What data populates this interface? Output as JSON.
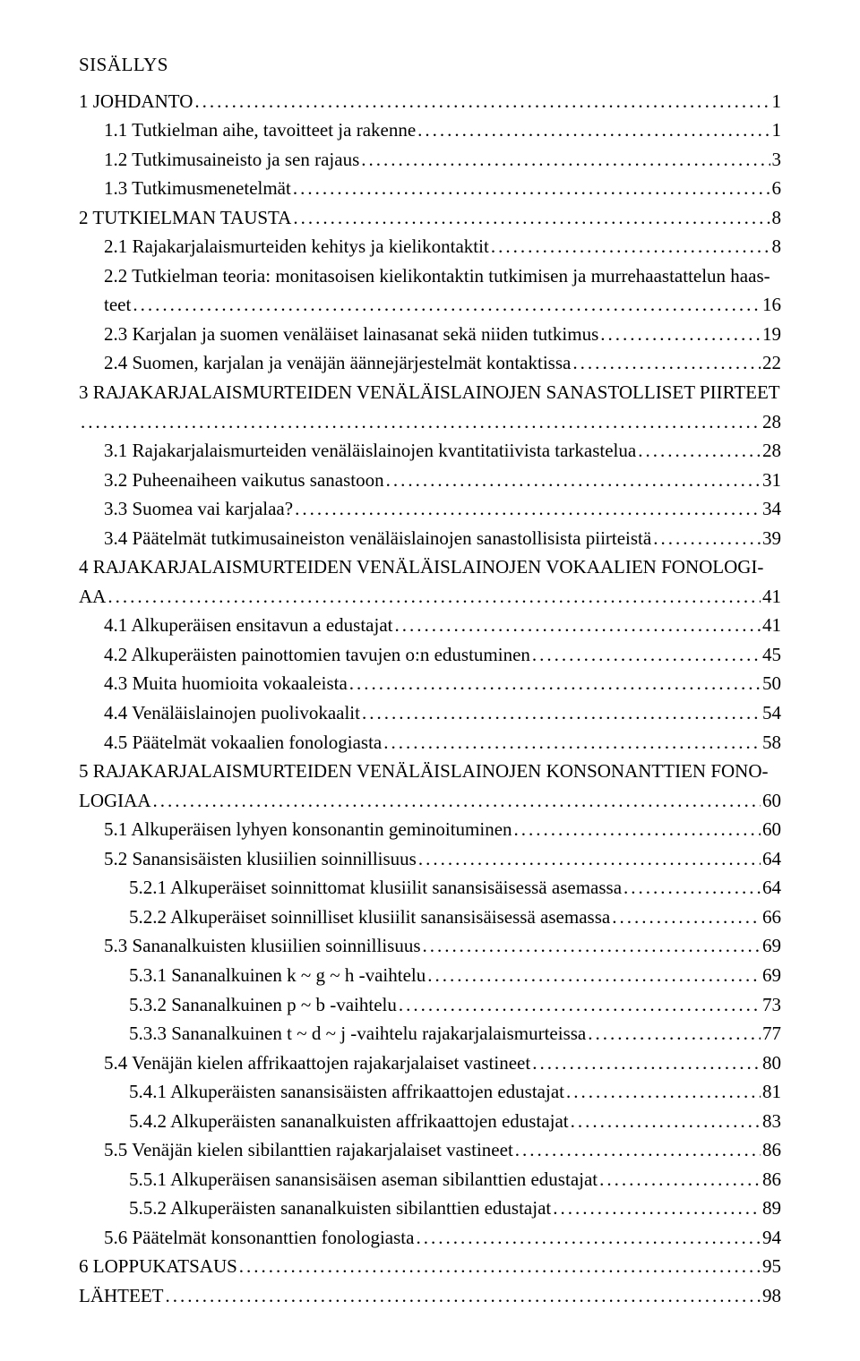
{
  "title": "SISÄLLYS",
  "entries": [
    {
      "indent": 0,
      "label": "1 JOHDANTO",
      "page": "1"
    },
    {
      "indent": 1,
      "label": "1.1 Tutkielman aihe, tavoitteet ja rakenne",
      "page": "1"
    },
    {
      "indent": 1,
      "label": "1.2 Tutkimusaineisto ja sen rajaus",
      "page": "3"
    },
    {
      "indent": 1,
      "label": "1.3 Tutkimusmenetelmät",
      "page": "6"
    },
    {
      "indent": 0,
      "label": "2 TUTKIELMAN TAUSTA",
      "page": "8"
    },
    {
      "indent": 1,
      "label": "2.1 Rajakarjalaismurteiden kehitys ja kielikontaktit",
      "page": "8"
    },
    {
      "indent": 1,
      "label": "2.2 Tutkielman teoria: monitasoisen kielikontaktin tutkimisen ja murrehaastattelun haas-",
      "page": "",
      "nowrap": true
    },
    {
      "indent": 1,
      "label": "teet",
      "page": "16"
    },
    {
      "indent": 1,
      "label": "2.3 Karjalan ja suomen venäläiset lainasanat sekä niiden tutkimus",
      "page": "19"
    },
    {
      "indent": 1,
      "label": "2.4 Suomen, karjalan ja venäjän äännejärjestelmät kontaktissa",
      "page": "22"
    },
    {
      "indent": 0,
      "label": "3 RAJAKARJALAISMURTEIDEN VENÄLÄISLAINOJEN SANASTOLLISET PIIRTEET",
      "page": "",
      "nowrap": true
    },
    {
      "indent": 0,
      "label": "",
      "page": "28",
      "cont": true
    },
    {
      "indent": 1,
      "label": "3.1 Rajakarjalaismurteiden venäläislainojen kvantitatiivista tarkastelua",
      "page": "28"
    },
    {
      "indent": 1,
      "label": "3.2 Puheenaiheen vaikutus sanastoon",
      "page": "31"
    },
    {
      "indent": 1,
      "label": "3.3 Suomea vai karjalaa?",
      "page": "34"
    },
    {
      "indent": 1,
      "label": "3.4 Päätelmät tutkimusaineiston venäläislainojen sanastollisista piirteistä",
      "page": "39"
    },
    {
      "indent": 0,
      "label": "4  RAJAKARJALAISMURTEIDEN  VENÄLÄISLAINOJEN  VOKAALIEN  FONOLOGI-",
      "page": "",
      "nowrap": true
    },
    {
      "indent": 0,
      "label": "AA",
      "page": "41"
    },
    {
      "indent": 1,
      "label": "4.1 Alkuperäisen ensitavun a edustajat",
      "page": "41"
    },
    {
      "indent": 1,
      "label": "4.2 Alkuperäisten painottomien tavujen o:n edustuminen",
      "page": "45"
    },
    {
      "indent": 1,
      "label": "4.3 Muita huomioita vokaaleista",
      "page": "50"
    },
    {
      "indent": 1,
      "label": "4.4 Venäläislainojen puolivokaalit",
      "page": "54"
    },
    {
      "indent": 1,
      "label": "4.5 Päätelmät vokaalien fonologiasta",
      "page": "58"
    },
    {
      "indent": 0,
      "label": "5  RAJAKARJALAISMURTEIDEN  VENÄLÄISLAINOJEN  KONSONANTTIEN  FONO-",
      "page": "",
      "nowrap": true
    },
    {
      "indent": 0,
      "label": "LOGIAA",
      "page": "60"
    },
    {
      "indent": 1,
      "label": "5.1 Alkuperäisen lyhyen konsonantin geminoituminen",
      "page": "60"
    },
    {
      "indent": 1,
      "label": "5.2 Sanansisäisten klusiilien soinnillisuus",
      "page": "64"
    },
    {
      "indent": 2,
      "label": "5.2.1 Alkuperäiset soinnittomat klusiilit sanansisäisessä asemassa",
      "page": "64"
    },
    {
      "indent": 2,
      "label": "5.2.2 Alkuperäiset soinnilliset klusiilit sanansisäisessä asemassa",
      "page": "66"
    },
    {
      "indent": 1,
      "label": "5.3 Sananalkuisten klusiilien soinnillisuus",
      "page": "69"
    },
    {
      "indent": 2,
      "label": "5.3.1 Sananalkuinen k ~ g ~ h -vaihtelu",
      "page": "69"
    },
    {
      "indent": 2,
      "label": "5.3.2 Sananalkuinen p ~ b -vaihtelu",
      "page": "73"
    },
    {
      "indent": 2,
      "label": "5.3.3 Sananalkuinen t ~ d ~ j -vaihtelu rajakarjalaismurteissa",
      "page": "77"
    },
    {
      "indent": 1,
      "label": "5.4 Venäjän kielen affrikaattojen rajakarjalaiset vastineet",
      "page": "80"
    },
    {
      "indent": 2,
      "label": "5.4.1 Alkuperäisten sanansisäisten affrikaattojen edustajat",
      "page": "81"
    },
    {
      "indent": 2,
      "label": "5.4.2 Alkuperäisten sananalkuisten affrikaattojen edustajat",
      "page": "83"
    },
    {
      "indent": 1,
      "label": "5.5 Venäjän kielen sibilanttien rajakarjalaiset vastineet",
      "page": "86"
    },
    {
      "indent": 2,
      "label": "5.5.1 Alkuperäisen sanansisäisen aseman sibilanttien edustajat",
      "page": "86"
    },
    {
      "indent": 2,
      "label": "5.5.2 Alkuperäisten sananalkuisten sibilanttien edustajat",
      "page": "89"
    },
    {
      "indent": 1,
      "label": "5.6 Päätelmät konsonanttien fonologiasta",
      "page": "94"
    },
    {
      "indent": 0,
      "label": "6 LOPPUKATSAUS",
      "page": "95"
    },
    {
      "indent": 0,
      "label": "LÄHTEET",
      "page": "98"
    }
  ]
}
